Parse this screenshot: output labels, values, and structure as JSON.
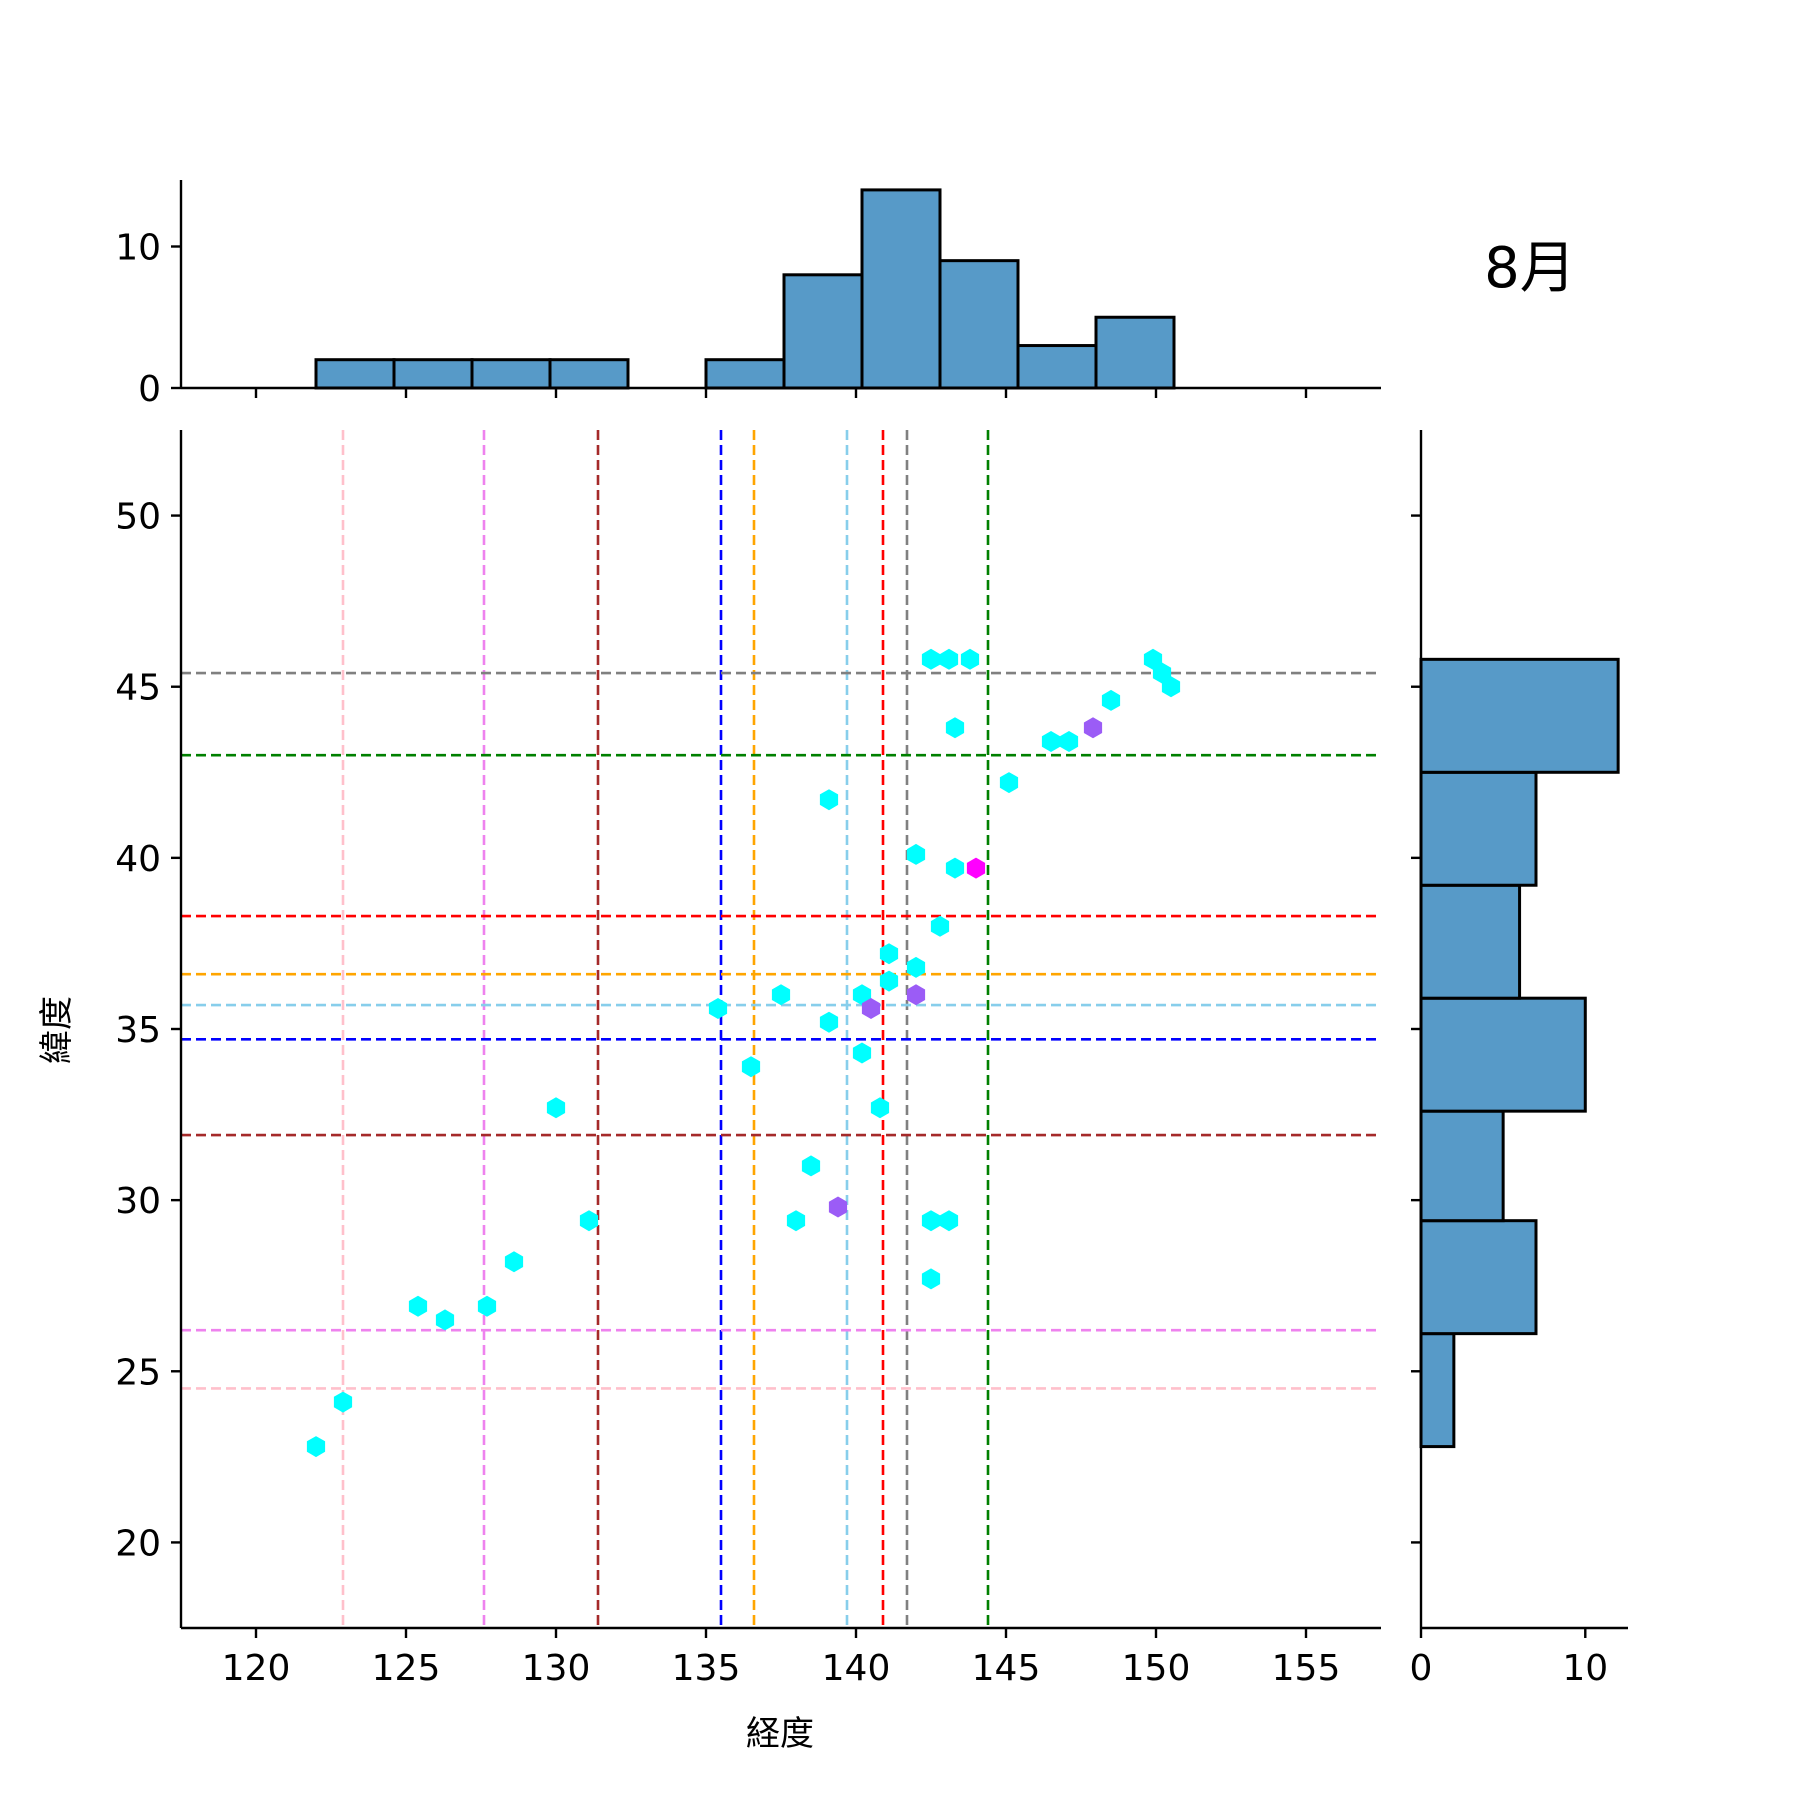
{
  "chart_data": {
    "type": "scatter",
    "title": "8月",
    "xlabel": "経度",
    "ylabel": "緯度",
    "xlim": [
      117.5,
      157.5
    ],
    "ylim": [
      17.5,
      52.5
    ],
    "x_ticks": [
      120,
      125,
      130,
      135,
      140,
      145,
      150,
      155
    ],
    "y_ticks": [
      20,
      25,
      30,
      35,
      40,
      45,
      50
    ],
    "grid": false,
    "point_colors": {
      "cyan": "#00ffff",
      "purple": "#9b5cf6",
      "magenta": "#ff00ff"
    },
    "points": [
      {
        "x": 122.0,
        "y": 22.8,
        "c": "cyan"
      },
      {
        "x": 122.9,
        "y": 24.1,
        "c": "cyan"
      },
      {
        "x": 125.4,
        "y": 26.9,
        "c": "cyan"
      },
      {
        "x": 126.3,
        "y": 26.5,
        "c": "cyan"
      },
      {
        "x": 127.7,
        "y": 26.9,
        "c": "cyan"
      },
      {
        "x": 128.6,
        "y": 28.2,
        "c": "cyan"
      },
      {
        "x": 130.0,
        "y": 32.7,
        "c": "cyan"
      },
      {
        "x": 131.1,
        "y": 29.4,
        "c": "cyan"
      },
      {
        "x": 135.4,
        "y": 35.6,
        "c": "cyan"
      },
      {
        "x": 136.5,
        "y": 33.9,
        "c": "cyan"
      },
      {
        "x": 137.5,
        "y": 36.0,
        "c": "cyan"
      },
      {
        "x": 138.0,
        "y": 29.4,
        "c": "cyan"
      },
      {
        "x": 138.5,
        "y": 31.0,
        "c": "cyan"
      },
      {
        "x": 139.1,
        "y": 35.2,
        "c": "cyan"
      },
      {
        "x": 139.1,
        "y": 41.7,
        "c": "cyan"
      },
      {
        "x": 139.4,
        "y": 29.8,
        "c": "purple"
      },
      {
        "x": 140.2,
        "y": 34.3,
        "c": "cyan"
      },
      {
        "x": 140.2,
        "y": 36.0,
        "c": "cyan"
      },
      {
        "x": 140.5,
        "y": 35.6,
        "c": "purple"
      },
      {
        "x": 140.8,
        "y": 32.7,
        "c": "cyan"
      },
      {
        "x": 141.1,
        "y": 37.2,
        "c": "cyan"
      },
      {
        "x": 141.1,
        "y": 36.4,
        "c": "cyan"
      },
      {
        "x": 142.0,
        "y": 40.1,
        "c": "cyan"
      },
      {
        "x": 142.0,
        "y": 36.8,
        "c": "cyan"
      },
      {
        "x": 142.0,
        "y": 36.0,
        "c": "purple"
      },
      {
        "x": 142.5,
        "y": 45.8,
        "c": "cyan"
      },
      {
        "x": 142.5,
        "y": 29.4,
        "c": "cyan"
      },
      {
        "x": 142.5,
        "y": 27.7,
        "c": "cyan"
      },
      {
        "x": 142.8,
        "y": 38.0,
        "c": "cyan"
      },
      {
        "x": 143.1,
        "y": 45.8,
        "c": "cyan"
      },
      {
        "x": 143.1,
        "y": 29.4,
        "c": "cyan"
      },
      {
        "x": 143.3,
        "y": 43.8,
        "c": "cyan"
      },
      {
        "x": 143.3,
        "y": 39.7,
        "c": "cyan"
      },
      {
        "x": 143.8,
        "y": 45.8,
        "c": "cyan"
      },
      {
        "x": 144.0,
        "y": 39.7,
        "c": "magenta"
      },
      {
        "x": 145.1,
        "y": 42.2,
        "c": "cyan"
      },
      {
        "x": 146.5,
        "y": 43.4,
        "c": "cyan"
      },
      {
        "x": 147.1,
        "y": 43.4,
        "c": "cyan"
      },
      {
        "x": 147.9,
        "y": 43.8,
        "c": "purple"
      },
      {
        "x": 148.5,
        "y": 44.6,
        "c": "cyan"
      },
      {
        "x": 149.9,
        "y": 45.8,
        "c": "cyan"
      },
      {
        "x": 150.2,
        "y": 45.4,
        "c": "cyan"
      },
      {
        "x": 150.5,
        "y": 45.0,
        "c": "cyan"
      }
    ],
    "vlines": [
      {
        "x": 122.9,
        "color": "#ffc0cb"
      },
      {
        "x": 127.6,
        "color": "#ee82ee"
      },
      {
        "x": 131.4,
        "color": "#a52a2a"
      },
      {
        "x": 135.5,
        "color": "#0000ff"
      },
      {
        "x": 136.6,
        "color": "#ffa500"
      },
      {
        "x": 139.7,
        "color": "#87ceeb"
      },
      {
        "x": 140.9,
        "color": "#ff0000"
      },
      {
        "x": 141.7,
        "color": "#808080"
      },
      {
        "x": 144.4,
        "color": "#008000"
      }
    ],
    "hlines": [
      {
        "y": 45.4,
        "color": "#808080"
      },
      {
        "y": 43.0,
        "color": "#008000"
      },
      {
        "y": 38.3,
        "color": "#ff0000"
      },
      {
        "y": 36.6,
        "color": "#ffa500"
      },
      {
        "y": 35.7,
        "color": "#87ceeb"
      },
      {
        "y": 34.7,
        "color": "#0000ff"
      },
      {
        "y": 31.9,
        "color": "#a52a2a"
      },
      {
        "y": 26.2,
        "color": "#ee82ee"
      },
      {
        "y": 24.5,
        "color": "#ffc0cb"
      }
    ],
    "x_histogram": {
      "bin_edges": [
        122.0,
        124.6,
        127.2,
        129.8,
        132.4,
        135.0,
        137.6,
        140.2,
        142.8,
        145.4,
        148.0,
        150.6
      ],
      "counts": [
        2,
        2,
        2,
        2,
        0,
        2,
        8,
        14,
        9,
        3,
        5
      ],
      "ylim": [
        0,
        14.7
      ],
      "ticks": [
        0,
        10
      ]
    },
    "y_histogram": {
      "bin_edges": [
        22.8,
        26.1,
        29.4,
        32.6,
        35.9,
        39.2,
        42.5,
        45.8
      ],
      "counts": [
        2,
        7,
        5,
        10,
        6,
        7,
        12
      ],
      "xlim": [
        0,
        12.6
      ],
      "ticks": [
        0,
        10
      ]
    },
    "bar_fill": "#579ac8",
    "bar_edge": "#000000"
  }
}
